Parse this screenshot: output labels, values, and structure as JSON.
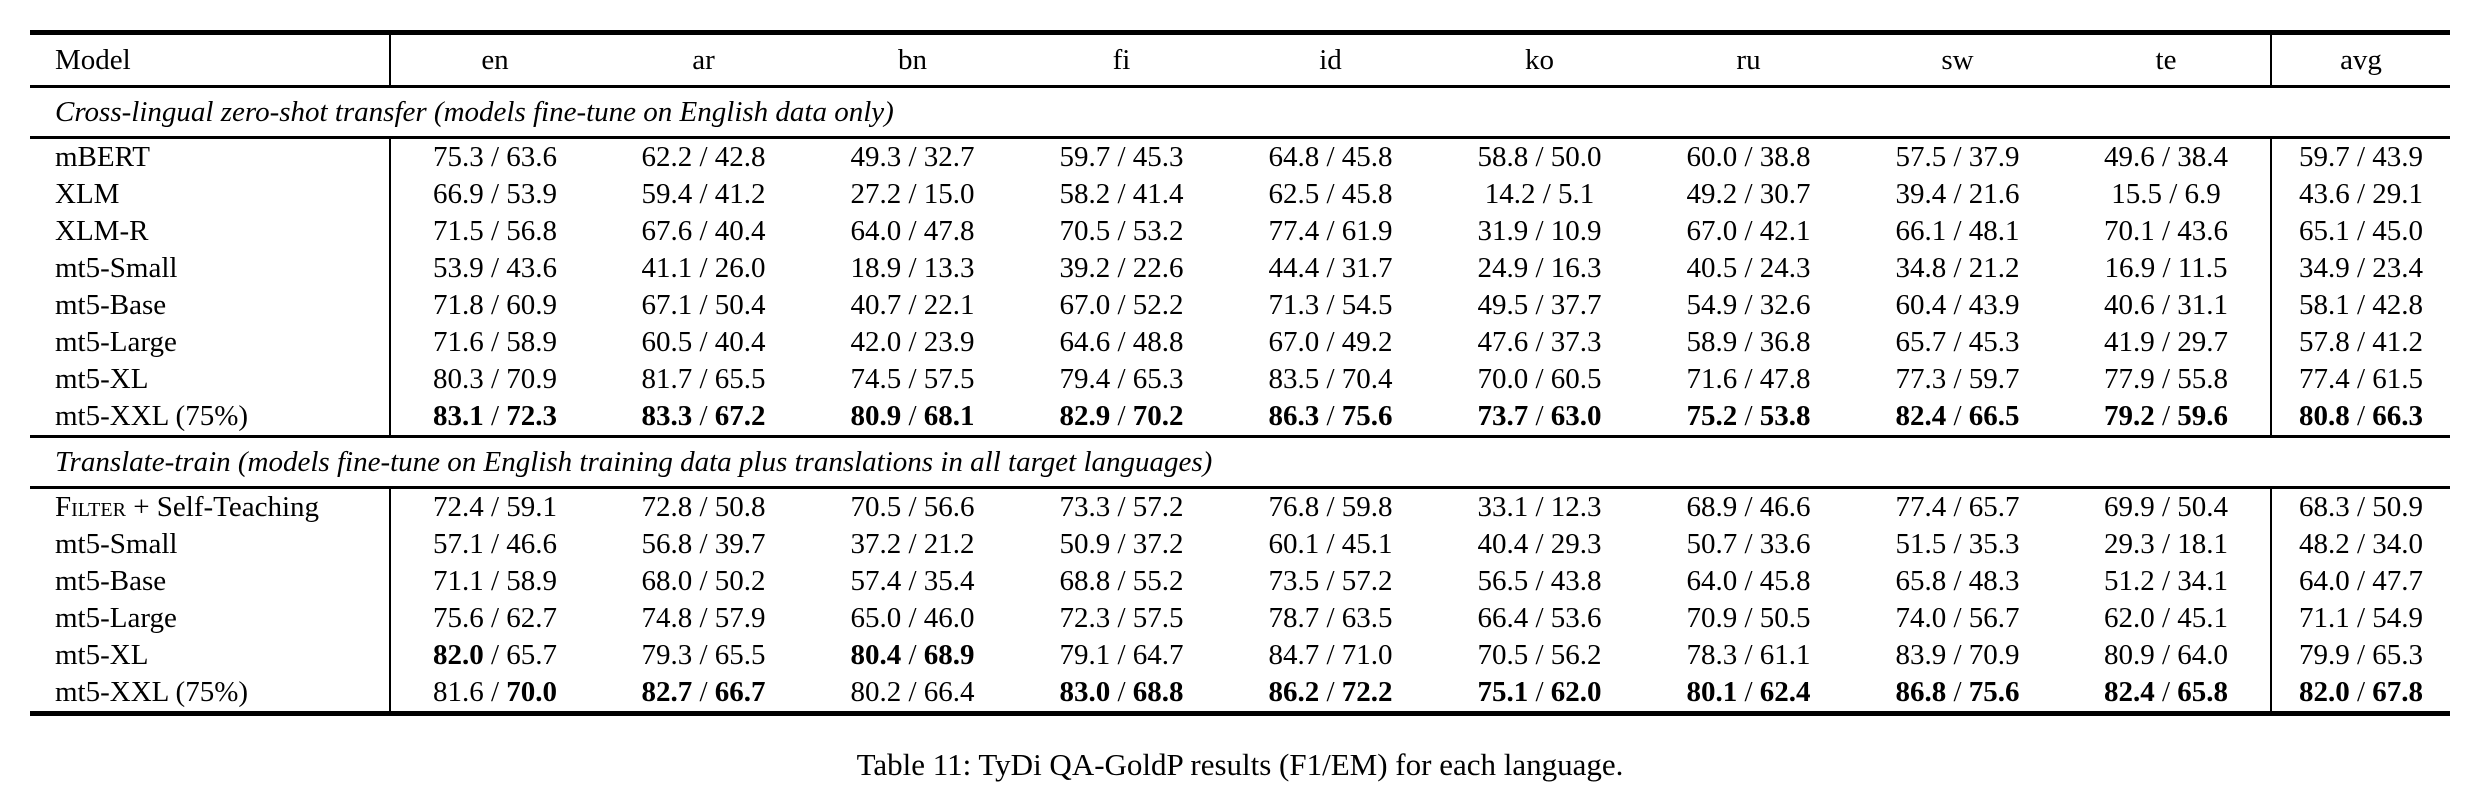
{
  "page": {
    "background": "#ffffff",
    "text_color": "#000000"
  },
  "table": {
    "columns": [
      "Model",
      "en",
      "ar",
      "bn",
      "fi",
      "id",
      "ko",
      "ru",
      "sw",
      "te",
      "avg"
    ],
    "sections": [
      {
        "title": "Cross-lingual zero-shot transfer (models fine-tune on English data only)",
        "rows": [
          {
            "model": "mBERT",
            "cells": [
              [
                "75.3",
                "63.6",
                0,
                0
              ],
              [
                "62.2",
                "42.8",
                0,
                0
              ],
              [
                "49.3",
                "32.7",
                0,
                0
              ],
              [
                "59.7",
                "45.3",
                0,
                0
              ],
              [
                "64.8",
                "45.8",
                0,
                0
              ],
              [
                "58.8",
                "50.0",
                0,
                0
              ],
              [
                "60.0",
                "38.8",
                0,
                0
              ],
              [
                "57.5",
                "37.9",
                0,
                0
              ],
              [
                "49.6",
                "38.4",
                0,
                0
              ],
              [
                "59.7",
                "43.9",
                0,
                0
              ]
            ]
          },
          {
            "model": "XLM",
            "cells": [
              [
                "66.9",
                "53.9",
                0,
                0
              ],
              [
                "59.4",
                "41.2",
                0,
                0
              ],
              [
                "27.2",
                "15.0",
                0,
                0
              ],
              [
                "58.2",
                "41.4",
                0,
                0
              ],
              [
                "62.5",
                "45.8",
                0,
                0
              ],
              [
                "14.2",
                "5.1",
                0,
                0
              ],
              [
                "49.2",
                "30.7",
                0,
                0
              ],
              [
                "39.4",
                "21.6",
                0,
                0
              ],
              [
                "15.5",
                "6.9",
                0,
                0
              ],
              [
                "43.6",
                "29.1",
                0,
                0
              ]
            ]
          },
          {
            "model": "XLM-R",
            "cells": [
              [
                "71.5",
                "56.8",
                0,
                0
              ],
              [
                "67.6",
                "40.4",
                0,
                0
              ],
              [
                "64.0",
                "47.8",
                0,
                0
              ],
              [
                "70.5",
                "53.2",
                0,
                0
              ],
              [
                "77.4",
                "61.9",
                0,
                0
              ],
              [
                "31.9",
                "10.9",
                0,
                0
              ],
              [
                "67.0",
                "42.1",
                0,
                0
              ],
              [
                "66.1",
                "48.1",
                0,
                0
              ],
              [
                "70.1",
                "43.6",
                0,
                0
              ],
              [
                "65.1",
                "45.0",
                0,
                0
              ]
            ]
          },
          {
            "model": "mt5-Small",
            "cells": [
              [
                "53.9",
                "43.6",
                0,
                0
              ],
              [
                "41.1",
                "26.0",
                0,
                0
              ],
              [
                "18.9",
                "13.3",
                0,
                0
              ],
              [
                "39.2",
                "22.6",
                0,
                0
              ],
              [
                "44.4",
                "31.7",
                0,
                0
              ],
              [
                "24.9",
                "16.3",
                0,
                0
              ],
              [
                "40.5",
                "24.3",
                0,
                0
              ],
              [
                "34.8",
                "21.2",
                0,
                0
              ],
              [
                "16.9",
                "11.5",
                0,
                0
              ],
              [
                "34.9",
                "23.4",
                0,
                0
              ]
            ]
          },
          {
            "model": "mt5-Base",
            "cells": [
              [
                "71.8",
                "60.9",
                0,
                0
              ],
              [
                "67.1",
                "50.4",
                0,
                0
              ],
              [
                "40.7",
                "22.1",
                0,
                0
              ],
              [
                "67.0",
                "52.2",
                0,
                0
              ],
              [
                "71.3",
                "54.5",
                0,
                0
              ],
              [
                "49.5",
                "37.7",
                0,
                0
              ],
              [
                "54.9",
                "32.6",
                0,
                0
              ],
              [
                "60.4",
                "43.9",
                0,
                0
              ],
              [
                "40.6",
                "31.1",
                0,
                0
              ],
              [
                "58.1",
                "42.8",
                0,
                0
              ]
            ]
          },
          {
            "model": "mt5-Large",
            "cells": [
              [
                "71.6",
                "58.9",
                0,
                0
              ],
              [
                "60.5",
                "40.4",
                0,
                0
              ],
              [
                "42.0",
                "23.9",
                0,
                0
              ],
              [
                "64.6",
                "48.8",
                0,
                0
              ],
              [
                "67.0",
                "49.2",
                0,
                0
              ],
              [
                "47.6",
                "37.3",
                0,
                0
              ],
              [
                "58.9",
                "36.8",
                0,
                0
              ],
              [
                "65.7",
                "45.3",
                0,
                0
              ],
              [
                "41.9",
                "29.7",
                0,
                0
              ],
              [
                "57.8",
                "41.2",
                0,
                0
              ]
            ]
          },
          {
            "model": "mt5-XL",
            "cells": [
              [
                "80.3",
                "70.9",
                0,
                0
              ],
              [
                "81.7",
                "65.5",
                0,
                0
              ],
              [
                "74.5",
                "57.5",
                0,
                0
              ],
              [
                "79.4",
                "65.3",
                0,
                0
              ],
              [
                "83.5",
                "70.4",
                0,
                0
              ],
              [
                "70.0",
                "60.5",
                0,
                0
              ],
              [
                "71.6",
                "47.8",
                0,
                0
              ],
              [
                "77.3",
                "59.7",
                0,
                0
              ],
              [
                "77.9",
                "55.8",
                0,
                0
              ],
              [
                "77.4",
                "61.5",
                0,
                0
              ]
            ]
          },
          {
            "model": "mt5-XXL (75%)",
            "cells": [
              [
                "83.1",
                "72.3",
                1,
                1
              ],
              [
                "83.3",
                "67.2",
                1,
                1
              ],
              [
                "80.9",
                "68.1",
                1,
                1
              ],
              [
                "82.9",
                "70.2",
                1,
                1
              ],
              [
                "86.3",
                "75.6",
                1,
                1
              ],
              [
                "73.7",
                "63.0",
                1,
                1
              ],
              [
                "75.2",
                "53.8",
                1,
                1
              ],
              [
                "82.4",
                "66.5",
                1,
                1
              ],
              [
                "79.2",
                "59.6",
                1,
                1
              ],
              [
                "80.8",
                "66.3",
                1,
                1
              ]
            ]
          }
        ]
      },
      {
        "title": "Translate-train (models fine-tune on English training data plus translations in all target languages)",
        "rows": [
          {
            "model": "Filter + Self-Teaching",
            "smallcaps_prefix": "Filter",
            "model_rest": " + Self-Teaching",
            "cells": [
              [
                "72.4",
                "59.1",
                0,
                0
              ],
              [
                "72.8",
                "50.8",
                0,
                0
              ],
              [
                "70.5",
                "56.6",
                0,
                0
              ],
              [
                "73.3",
                "57.2",
                0,
                0
              ],
              [
                "76.8",
                "59.8",
                0,
                0
              ],
              [
                "33.1",
                "12.3",
                0,
                0
              ],
              [
                "68.9",
                "46.6",
                0,
                0
              ],
              [
                "77.4",
                "65.7",
                0,
                0
              ],
              [
                "69.9",
                "50.4",
                0,
                0
              ],
              [
                "68.3",
                "50.9",
                0,
                0
              ]
            ]
          },
          {
            "model": "mt5-Small",
            "cells": [
              [
                "57.1",
                "46.6",
                0,
                0
              ],
              [
                "56.8",
                "39.7",
                0,
                0
              ],
              [
                "37.2",
                "21.2",
                0,
                0
              ],
              [
                "50.9",
                "37.2",
                0,
                0
              ],
              [
                "60.1",
                "45.1",
                0,
                0
              ],
              [
                "40.4",
                "29.3",
                0,
                0
              ],
              [
                "50.7",
                "33.6",
                0,
                0
              ],
              [
                "51.5",
                "35.3",
                0,
                0
              ],
              [
                "29.3",
                "18.1",
                0,
                0
              ],
              [
                "48.2",
                "34.0",
                0,
                0
              ]
            ]
          },
          {
            "model": "mt5-Base",
            "cells": [
              [
                "71.1",
                "58.9",
                0,
                0
              ],
              [
                "68.0",
                "50.2",
                0,
                0
              ],
              [
                "57.4",
                "35.4",
                0,
                0
              ],
              [
                "68.8",
                "55.2",
                0,
                0
              ],
              [
                "73.5",
                "57.2",
                0,
                0
              ],
              [
                "56.5",
                "43.8",
                0,
                0
              ],
              [
                "64.0",
                "45.8",
                0,
                0
              ],
              [
                "65.8",
                "48.3",
                0,
                0
              ],
              [
                "51.2",
                "34.1",
                0,
                0
              ],
              [
                "64.0",
                "47.7",
                0,
                0
              ]
            ]
          },
          {
            "model": "mt5-Large",
            "cells": [
              [
                "75.6",
                "62.7",
                0,
                0
              ],
              [
                "74.8",
                "57.9",
                0,
                0
              ],
              [
                "65.0",
                "46.0",
                0,
                0
              ],
              [
                "72.3",
                "57.5",
                0,
                0
              ],
              [
                "78.7",
                "63.5",
                0,
                0
              ],
              [
                "66.4",
                "53.6",
                0,
                0
              ],
              [
                "70.9",
                "50.5",
                0,
                0
              ],
              [
                "74.0",
                "56.7",
                0,
                0
              ],
              [
                "62.0",
                "45.1",
                0,
                0
              ],
              [
                "71.1",
                "54.9",
                0,
                0
              ]
            ]
          },
          {
            "model": "mt5-XL",
            "cells": [
              [
                "82.0",
                "65.7",
                1,
                0
              ],
              [
                "79.3",
                "65.5",
                0,
                0
              ],
              [
                "80.4",
                "68.9",
                1,
                1
              ],
              [
                "79.1",
                "64.7",
                0,
                0
              ],
              [
                "84.7",
                "71.0",
                0,
                0
              ],
              [
                "70.5",
                "56.2",
                0,
                0
              ],
              [
                "78.3",
                "61.1",
                0,
                0
              ],
              [
                "83.9",
                "70.9",
                0,
                0
              ],
              [
                "80.9",
                "64.0",
                0,
                0
              ],
              [
                "79.9",
                "65.3",
                0,
                0
              ]
            ]
          },
          {
            "model": "mt5-XXL (75%)",
            "cells": [
              [
                "81.6",
                "70.0",
                0,
                1
              ],
              [
                "82.7",
                "66.7",
                1,
                1
              ],
              [
                "80.2",
                "66.4",
                0,
                0
              ],
              [
                "83.0",
                "68.8",
                1,
                1
              ],
              [
                "86.2",
                "72.2",
                1,
                1
              ],
              [
                "75.1",
                "62.0",
                1,
                1
              ],
              [
                "80.1",
                "62.4",
                1,
                1
              ],
              [
                "86.8",
                "75.6",
                1,
                1
              ],
              [
                "82.4",
                "65.8",
                1,
                1
              ],
              [
                "82.0",
                "67.8",
                1,
                1
              ]
            ]
          }
        ]
      }
    ],
    "value_separator": " / "
  },
  "caption": "Table 11: TyDi QA-GoldP results (F1/EM) for each language."
}
